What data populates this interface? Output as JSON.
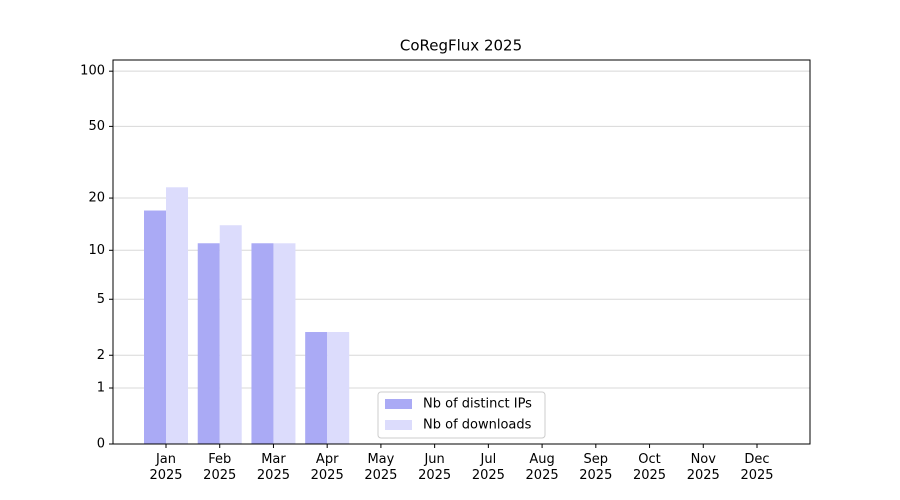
{
  "chart_data": {
    "type": "bar",
    "title": "CoRegFlux 2025",
    "categories": [
      "Jan\n2025",
      "Feb\n2025",
      "Mar\n2025",
      "Apr\n2025",
      "May\n2025",
      "Jun\n2025",
      "Jul\n2025",
      "Aug\n2025",
      "Sep\n2025",
      "Oct\n2025",
      "Nov\n2025",
      "Dec\n2025"
    ],
    "series": [
      {
        "name": "Nb of distinct IPs",
        "color": "#aaaaf5",
        "values": [
          17,
          11,
          11,
          3,
          0,
          0,
          0,
          0,
          0,
          0,
          0,
          0
        ]
      },
      {
        "name": "Nb of downloads",
        "color": "#dcdcfc",
        "values": [
          23,
          14,
          11,
          3,
          0,
          0,
          0,
          0,
          0,
          0,
          0,
          0
        ]
      }
    ],
    "y_scale": "log1p",
    "ylim": [
      0,
      115
    ],
    "yticks": [
      0,
      1,
      2,
      5,
      10,
      20,
      50,
      100
    ],
    "grid": true,
    "legend": "lower center"
  }
}
